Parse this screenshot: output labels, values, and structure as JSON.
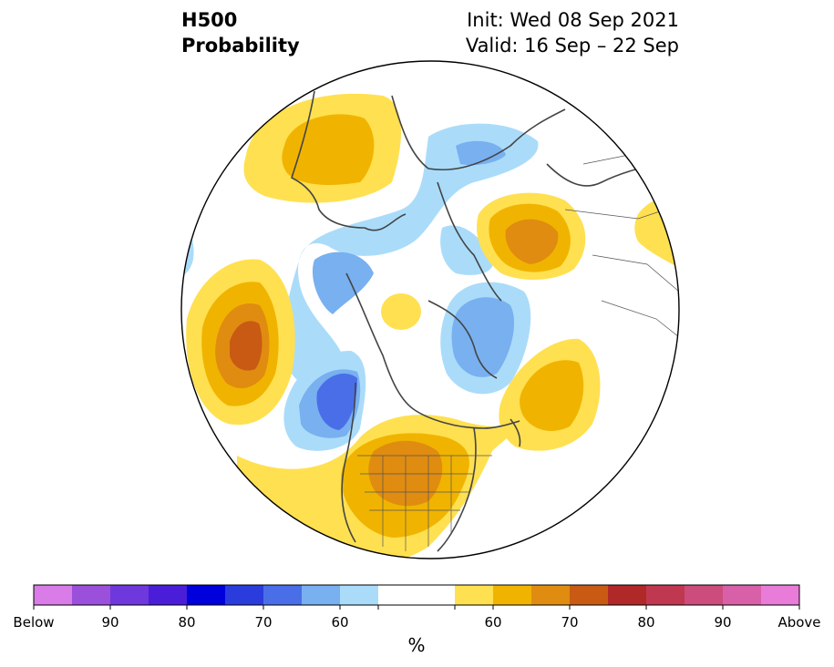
{
  "header": {
    "variable": "H500",
    "product": "Probability",
    "init": "Init: Wed 08 Sep 2021",
    "valid": "Valid: 16 Sep – 22 Sep"
  },
  "colorbar": {
    "unit": "%",
    "tick_labels": [
      "Below",
      "90",
      "80",
      "70",
      "60",
      "60",
      "70",
      "80",
      "90",
      "Above"
    ],
    "below_colors": [
      "#d97ce8",
      "#9b50dc",
      "#6e38dc",
      "#4a1ed8",
      "#0000dc",
      "#2a3cdc",
      "#4a6ee8",
      "#78b0f0",
      "#aadcfa"
    ],
    "neutral_color": "#ffffff",
    "above_colors": [
      "#ffe050",
      "#f0b400",
      "#e08c10",
      "#c85a14",
      "#b02828",
      "#c03850",
      "#cc4c7c",
      "#d860a8",
      "#e87cd8"
    ]
  },
  "map": {
    "projection": "north-polar-stereographic",
    "anomaly_centers": [
      {
        "region": "Alaska-Bering",
        "sign": "above",
        "level": 65
      },
      {
        "region": "Scandinavia-Barents",
        "sign": "above",
        "level": 70
      },
      {
        "region": "Central Eurasia edge",
        "sign": "above",
        "level": 60
      },
      {
        "region": "North Pacific",
        "sign": "above",
        "level": 75
      },
      {
        "region": "Central North America",
        "sign": "above",
        "level": 70
      },
      {
        "region": "North Atlantic",
        "sign": "above",
        "level": 65
      },
      {
        "region": "North Pole",
        "sign": "above",
        "level": 60
      },
      {
        "region": "Siberia-Arctic",
        "sign": "below",
        "level": 65
      },
      {
        "region": "Greenland",
        "sign": "below",
        "level": 65
      },
      {
        "region": "Gulf of Alaska",
        "sign": "below",
        "level": 75
      },
      {
        "region": "Northern Russia",
        "sign": "below",
        "level": 65
      }
    ]
  }
}
